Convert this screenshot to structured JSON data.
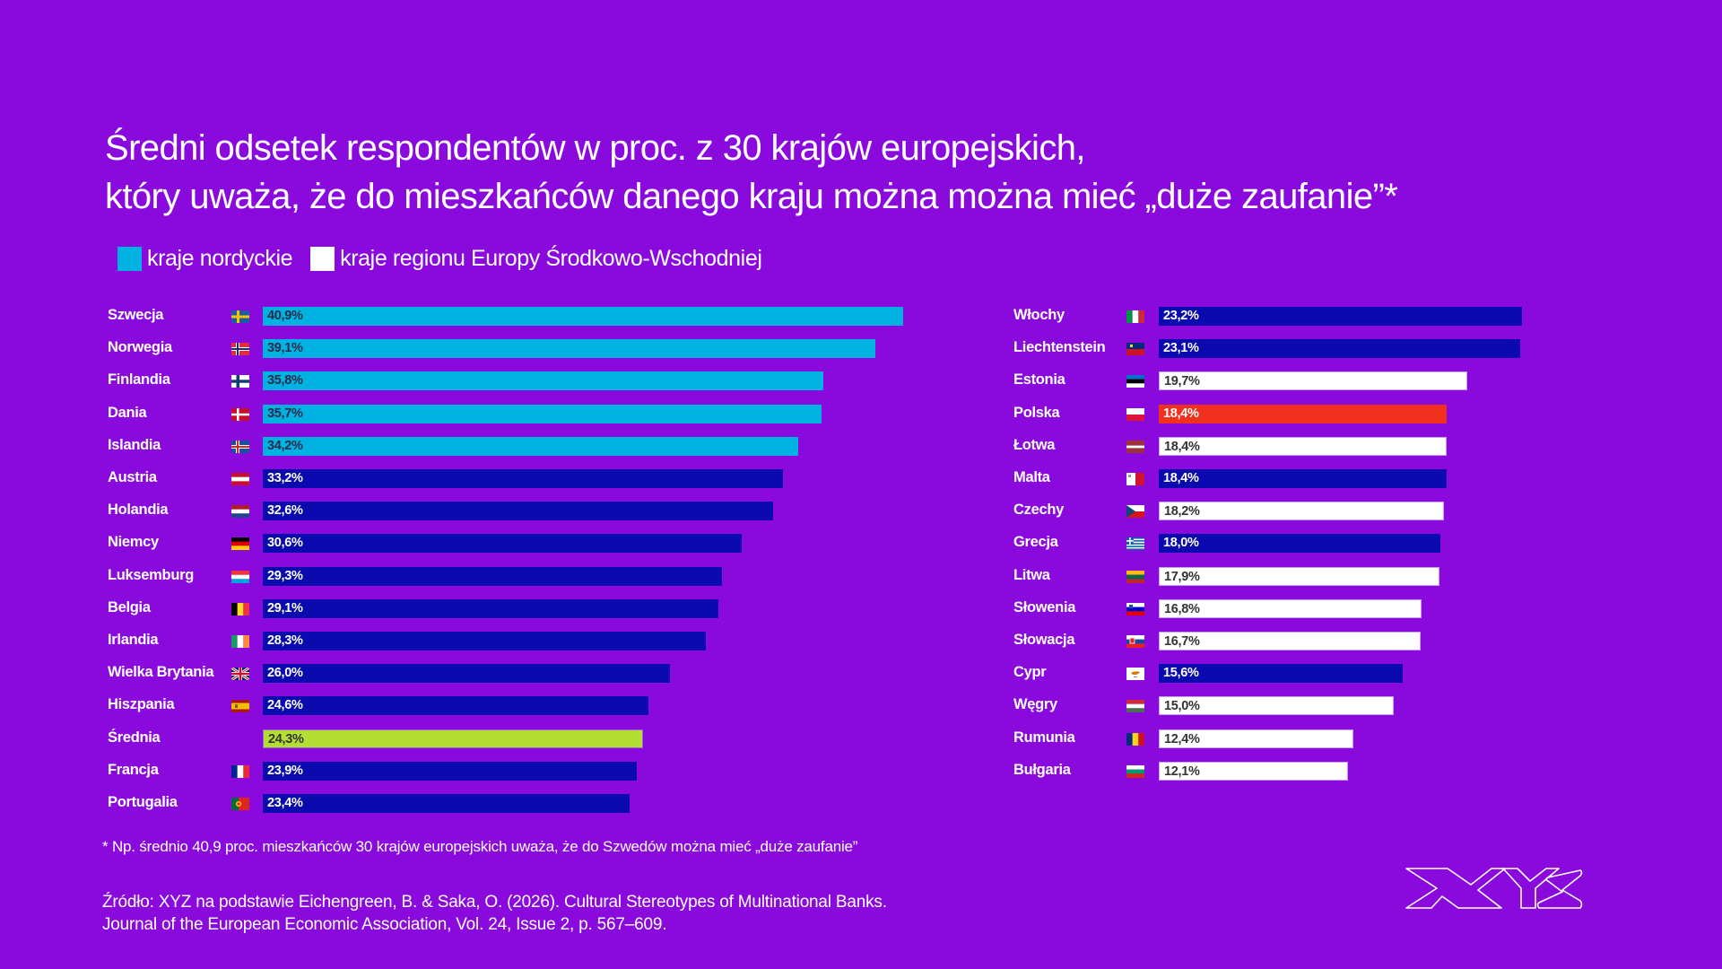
{
  "title": {
    "line1": "Średni odsetek respondentów w proc. z 30 krajów europejskich,",
    "line2": "który uważa, że do mieszkańców danego kraju można można mieć „duże zaufanie”*"
  },
  "legend": [
    {
      "label": "kraje nordyckie",
      "color": "#00B2E2"
    },
    {
      "label": "kraje regionu Europy Środkowo-Wschodniej",
      "color": "#FFFFFF"
    }
  ],
  "chart_data": {
    "type": "bar",
    "orientation": "horizontal",
    "title": "Średni odsetek respondentów w proc. z 30 krajów europejskich, który uważa, że do mieszkańców danego kraju można można mieć „duże zaufanie”*",
    "unit": "%",
    "xlim": [
      0,
      41
    ],
    "grid": false,
    "legend_position": "top-left",
    "colors": {
      "nordic": "#00B2E2",
      "cee": "#FFFFFF",
      "other": "#0A0AAE",
      "poland": "#F2301E",
      "average": "#B3DE33"
    },
    "columns": [
      {
        "name": "left",
        "items": [
          {
            "country": "Szwecja",
            "value": 40.9,
            "label": "40,9%",
            "group": "nordic",
            "flag": "se"
          },
          {
            "country": "Norwegia",
            "value": 39.1,
            "label": "39,1%",
            "group": "nordic",
            "flag": "no"
          },
          {
            "country": "Finlandia",
            "value": 35.8,
            "label": "35,8%",
            "group": "nordic",
            "flag": "fi"
          },
          {
            "country": "Dania",
            "value": 35.7,
            "label": "35,7%",
            "group": "nordic",
            "flag": "dk"
          },
          {
            "country": "Islandia",
            "value": 34.2,
            "label": "34,2%",
            "group": "nordic",
            "flag": "is"
          },
          {
            "country": "Austria",
            "value": 33.2,
            "label": "33,2%",
            "group": "other",
            "flag": "at"
          },
          {
            "country": "Holandia",
            "value": 32.6,
            "label": "32,6%",
            "group": "other",
            "flag": "nl"
          },
          {
            "country": "Niemcy",
            "value": 30.6,
            "label": "30,6%",
            "group": "other",
            "flag": "de"
          },
          {
            "country": "Luksemburg",
            "value": 29.3,
            "label": "29,3%",
            "group": "other",
            "flag": "lu"
          },
          {
            "country": "Belgia",
            "value": 29.1,
            "label": "29,1%",
            "group": "other",
            "flag": "be"
          },
          {
            "country": "Irlandia",
            "value": 28.3,
            "label": "28,3%",
            "group": "other",
            "flag": "ie"
          },
          {
            "country": "Wielka Brytania",
            "value": 26.0,
            "label": "26,0%",
            "group": "other",
            "flag": "gb"
          },
          {
            "country": "Hiszpania",
            "value": 24.6,
            "label": "24,6%",
            "group": "other",
            "flag": "es"
          },
          {
            "country": "Średnia",
            "value": 24.3,
            "label": "24,3%",
            "group": "avg",
            "flag": ""
          },
          {
            "country": "Francja",
            "value": 23.9,
            "label": "23,9%",
            "group": "other",
            "flag": "fr"
          },
          {
            "country": "Portugalia",
            "value": 23.4,
            "label": "23,4%",
            "group": "other",
            "flag": "pt"
          }
        ]
      },
      {
        "name": "right",
        "items": [
          {
            "country": "Włochy",
            "value": 23.2,
            "label": "23,2%",
            "group": "other",
            "flag": "it"
          },
          {
            "country": "Liechtenstein",
            "value": 23.1,
            "label": "23,1%",
            "group": "other",
            "flag": "li"
          },
          {
            "country": "Estonia",
            "value": 19.7,
            "label": "19,7%",
            "group": "cee",
            "flag": "ee"
          },
          {
            "country": "Polska",
            "value": 18.4,
            "label": "18,4%",
            "group": "poland",
            "flag": "pl"
          },
          {
            "country": "Łotwa",
            "value": 18.4,
            "label": "18,4%",
            "group": "cee",
            "flag": "lv"
          },
          {
            "country": "Malta",
            "value": 18.4,
            "label": "18,4%",
            "group": "other",
            "flag": "mt"
          },
          {
            "country": "Czechy",
            "value": 18.2,
            "label": "18,2%",
            "group": "cee",
            "flag": "cz"
          },
          {
            "country": "Grecja",
            "value": 18.0,
            "label": "18,0%",
            "group": "other",
            "flag": "gr"
          },
          {
            "country": "Litwa",
            "value": 17.9,
            "label": "17,9%",
            "group": "cee",
            "flag": "lt"
          },
          {
            "country": "Słowenia",
            "value": 16.8,
            "label": "16,8%",
            "group": "cee",
            "flag": "si"
          },
          {
            "country": "Słowacja",
            "value": 16.7,
            "label": "16,7%",
            "group": "cee",
            "flag": "sk"
          },
          {
            "country": "Cypr",
            "value": 15.6,
            "label": "15,6%",
            "group": "other",
            "flag": "cy"
          },
          {
            "country": "Węgry",
            "value": 15.0,
            "label": "15,0%",
            "group": "cee",
            "flag": "hu"
          },
          {
            "country": "Rumunia",
            "value": 12.4,
            "label": "12,4%",
            "group": "cee",
            "flag": "ro"
          },
          {
            "country": "Bułgaria",
            "value": 12.1,
            "label": "12,1%",
            "group": "cee",
            "flag": "bg"
          }
        ]
      }
    ]
  },
  "footnote": "* Np. średnio 40,9 proc. mieszkańców 30 krajów europejskich uważa, że do Szwedów można mieć „duże zaufanie”",
  "source": {
    "line1": "Źródło: XYZ na podstawie Eichengreen, B. & Saka, O. (2026). Cultural Stereotypes of Multinational Banks.",
    "line2": "Journal of the European Economic Association, Vol. 24, Issue 2, p. 567–609."
  },
  "logo": {
    "text": "XYZ",
    "icon": "xyz-logo-icon"
  },
  "colors": {
    "background": "#8A0ADE",
    "text": "#FFFFFF"
  }
}
